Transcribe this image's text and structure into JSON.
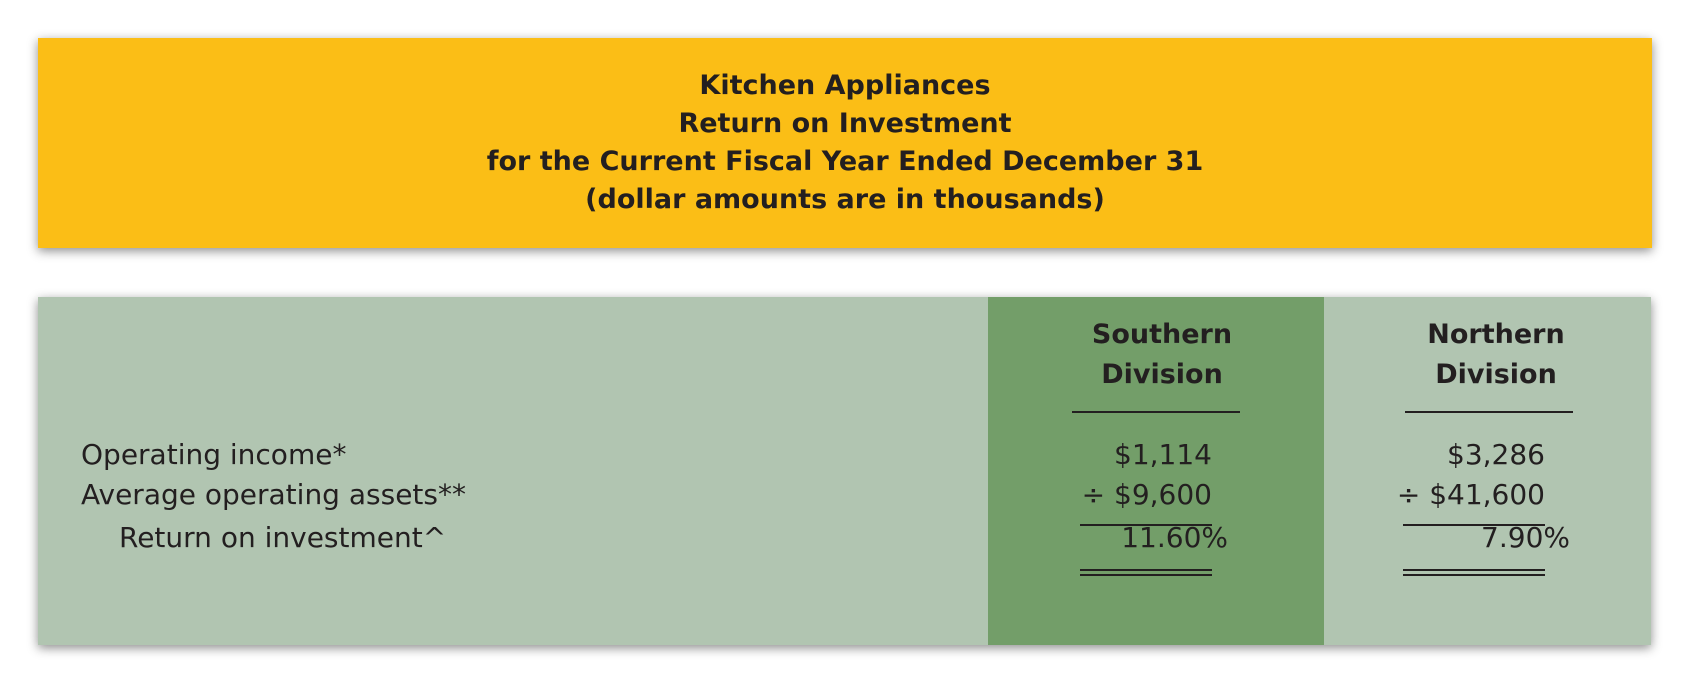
{
  "header": {
    "line1": "Kitchen Appliances",
    "line2": "Return on Investment",
    "line3": "for the Current Fiscal Year Ended December 31",
    "line4": "(dollar amounts are in thousands)"
  },
  "table": {
    "columns": {
      "southern": {
        "line1": "Southern",
        "line2": "Division"
      },
      "northern": {
        "line1": "Northern",
        "line2": "Division"
      }
    },
    "rows": [
      {
        "label": "Operating income*",
        "southern": "$1,114",
        "northern": "$3,286"
      },
      {
        "label": "Average operating assets**",
        "southern": "÷ $9,600",
        "northern": "÷ $41,600"
      },
      {
        "label": "Return on investment^",
        "southern": "11.60%",
        "northern": "7.90%"
      }
    ]
  },
  "colors": {
    "header_background": "#fbbe16",
    "table_background": "#b1c5b1",
    "highlight_column": "#739e69",
    "text": "#231f20"
  }
}
